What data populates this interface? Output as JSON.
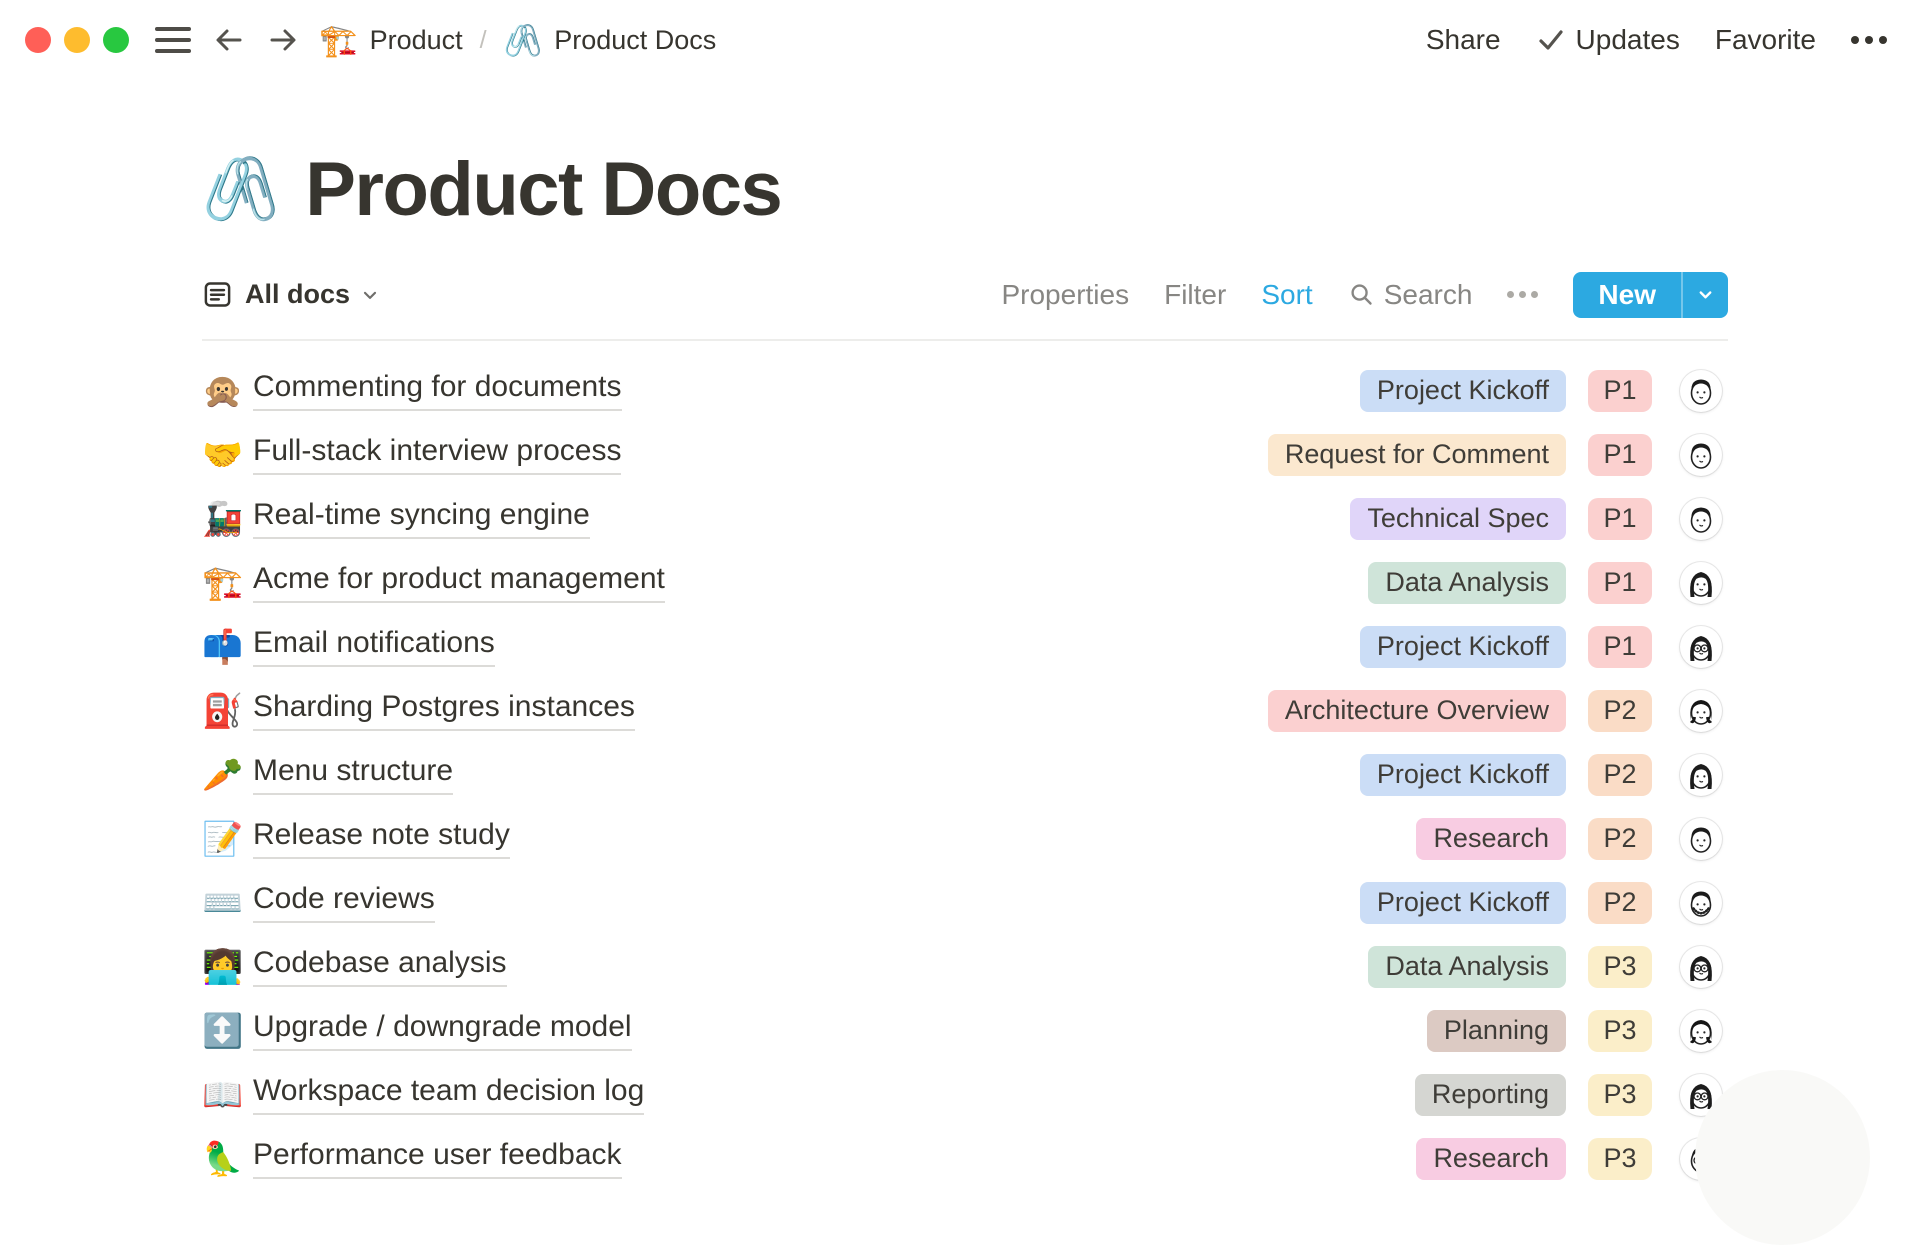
{
  "chrome": {
    "breadcrumb": {
      "separator": "/",
      "items": [
        {
          "icon": "🏗️",
          "label": "Product"
        },
        {
          "icon": "🖇️",
          "label": "Product Docs"
        }
      ]
    },
    "actions": {
      "share": "Share",
      "updates": "Updates",
      "favorite": "Favorite"
    }
  },
  "page": {
    "icon": "🖇️",
    "title": "Product Docs"
  },
  "toolbar": {
    "view_label": "All docs",
    "properties": "Properties",
    "filter": "Filter",
    "sort": "Sort",
    "search": "Search",
    "new": "New"
  },
  "colors": {
    "accent_blue": "#2ca9e1",
    "tag": {
      "blue": "#cbddf6",
      "cream": "#fbe8cf",
      "purple": "#e0d5f9",
      "green": "#cfe4d9",
      "salmon": "#fbd0d0",
      "pink": "#f8cce2",
      "taupe": "#dccac3",
      "gray": "#d5d6d2"
    },
    "priority": {
      "P1": "#fbd0cf",
      "P2": "#fadcc6",
      "P3": "#fbeec9"
    }
  },
  "docs": [
    {
      "icon": "🙊",
      "title": "Commenting for documents",
      "tag": "Project Kickoff",
      "tag_color": "blue",
      "priority": "P1",
      "avatar": "man"
    },
    {
      "icon": "🤝",
      "title": "Full-stack interview process",
      "tag": "Request for Comment",
      "tag_color": "cream",
      "priority": "P1",
      "avatar": "man"
    },
    {
      "icon": "🚂",
      "title": "Real-time syncing engine",
      "tag": "Technical Spec",
      "tag_color": "purple",
      "priority": "P1",
      "avatar": "man"
    },
    {
      "icon": "🏗️",
      "title": "Acme for product management",
      "tag": "Data Analysis",
      "tag_color": "green",
      "priority": "P1",
      "avatar": "woman-long"
    },
    {
      "icon": "📫",
      "title": "Email notifications",
      "tag": "Project Kickoff",
      "tag_color": "blue",
      "priority": "P1",
      "avatar": "woman-glasses"
    },
    {
      "icon": "⛽",
      "title": "Sharding Postgres instances",
      "tag": "Architecture Overview",
      "tag_color": "salmon",
      "priority": "P2",
      "avatar": "woman-bob"
    },
    {
      "icon": "🥕",
      "title": "Menu structure",
      "tag": "Project Kickoff",
      "tag_color": "blue",
      "priority": "P2",
      "avatar": "woman-long"
    },
    {
      "icon": "📝",
      "title": "Release note study",
      "tag": "Research",
      "tag_color": "pink",
      "priority": "P2",
      "avatar": "man"
    },
    {
      "icon": "⌨️",
      "title": "Code reviews",
      "tag": "Project Kickoff",
      "tag_color": "blue",
      "priority": "P2",
      "avatar": "man-beard"
    },
    {
      "icon": "👩‍💻",
      "title": "Codebase analysis",
      "tag": "Data Analysis",
      "tag_color": "green",
      "priority": "P3",
      "avatar": "woman-glasses"
    },
    {
      "icon": "↕️",
      "title": "Upgrade / downgrade model",
      "tag": "Planning",
      "tag_color": "taupe",
      "priority": "P3",
      "avatar": "woman-bob"
    },
    {
      "icon": "📖",
      "title": "Workspace team decision log",
      "tag": "Reporting",
      "tag_color": "gray",
      "priority": "P3",
      "avatar": "woman-glasses"
    },
    {
      "icon": "🦜",
      "title": "Performance user feedback",
      "tag": "Research",
      "tag_color": "pink",
      "priority": "P3",
      "avatar": "man-glasses"
    }
  ]
}
